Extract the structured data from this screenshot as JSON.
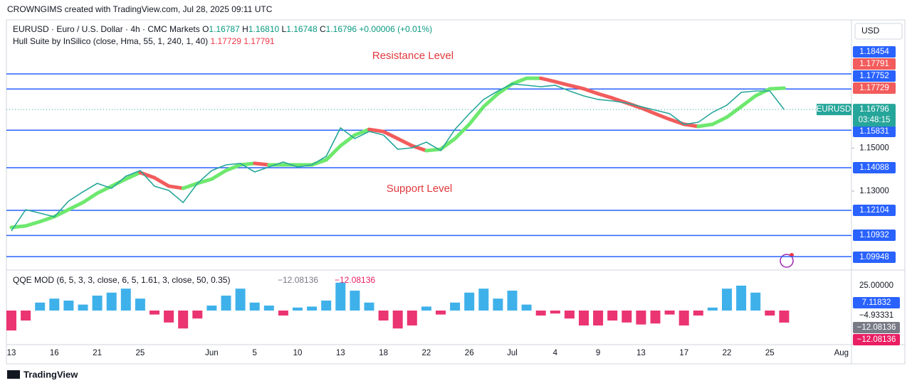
{
  "header": "CROWNGIMS created with TradingView.com, Jul 28, 2025 09:11 UTC",
  "footer": "TradingView",
  "chart_data": {
    "type": "line",
    "symbol_legend": "EURUSD · Euro / U.S. Dollar · 4h · CMC Markets",
    "ohlc": {
      "o_label": "O",
      "open": 1.16787,
      "h_label": "H",
      "high": 1.1681,
      "l_label": "L",
      "low": 1.16748,
      "c_label": "C",
      "close": 1.16796,
      "change": "+0.00006 (+0.01%)"
    },
    "high_label": "1.16810",
    "currency": "USD",
    "countdown": "03:48:15",
    "annotations": [
      "Resistance Level",
      "Support Level"
    ],
    "hull_legend": "Hull Suite by InSilico (close, Hma, 55, 1, 240, 1, 40)",
    "hull_values": [
      1.17729,
      1.17791
    ],
    "levels": [
      1.18454,
      1.17752,
      1.15831,
      1.14088,
      1.12104,
      1.10932,
      1.09948
    ],
    "level_color": "#2962ff",
    "ylim": [
      1.09392,
      1.209
    ],
    "yticks": [
      {
        "value": 1.15,
        "label": "1.15000"
      },
      {
        "value": 1.13,
        "label": "1.13000"
      }
    ],
    "categories": [
      "13",
      null,
      null,
      "16",
      null,
      null,
      "21",
      null,
      null,
      "25",
      null,
      null,
      null,
      null,
      "Jun",
      null,
      null,
      "5",
      null,
      null,
      "10",
      null,
      null,
      "13",
      null,
      null,
      "18",
      null,
      null,
      "22",
      null,
      null,
      "26",
      null,
      null,
      "Jul",
      null,
      null,
      "4",
      null,
      null,
      "9",
      null,
      null,
      "13",
      null,
      null,
      "17",
      null,
      null,
      "22",
      null,
      null,
      "25",
      null,
      null,
      null,
      null,
      "Aug"
    ],
    "series": [
      {
        "name": "EURUSD",
        "color": "#26a69a",
        "values": [
          1.11145,
          1.12137,
          1.11972,
          1.11806,
          1.12534,
          1.12964,
          1.1336,
          1.13129,
          1.13691,
          1.13956,
          1.13228,
          1.1303,
          1.12468,
          1.1336,
          1.13956,
          1.1422,
          1.14286,
          1.1389,
          1.14121,
          1.14353,
          1.14121,
          1.1422,
          1.14617,
          1.1594,
          1.15444,
          1.15775,
          1.15609,
          1.14948,
          1.15014,
          1.15278,
          1.14882,
          1.15874,
          1.16601,
          1.17263,
          1.17659,
          1.1799,
          1.17924,
          1.17858,
          1.17924,
          1.17659,
          1.17428,
          1.17263,
          1.17196,
          1.17097,
          1.16932,
          1.16767,
          1.16601,
          1.16105,
          1.16204,
          1.16667,
          1.16998,
          1.17593,
          1.17659,
          1.17659,
          1.16796,
          null,
          null,
          null,
          null
        ]
      },
      {
        "name": "Hull",
        "rising_color": "#6ee86e",
        "falling_color": "#f25c5c",
        "values": [
          1.1131,
          1.1138,
          1.1158,
          1.1181,
          1.1214,
          1.1247,
          1.129,
          1.1323,
          1.1356,
          1.1386,
          1.1362,
          1.1323,
          1.1313,
          1.1336,
          1.1356,
          1.1396,
          1.1422,
          1.1429,
          1.1422,
          1.1422,
          1.1422,
          1.1422,
          1.1445,
          1.1511,
          1.1561,
          1.1587,
          1.1577,
          1.1544,
          1.1511,
          1.1488,
          1.1495,
          1.1544,
          1.1611,
          1.1693,
          1.1753,
          1.1799,
          1.1825,
          1.1825,
          1.1809,
          1.1792,
          1.1776,
          1.1753,
          1.1733,
          1.171,
          1.1687,
          1.166,
          1.1634,
          1.1611,
          1.1601,
          1.1611,
          1.1644,
          1.1693,
          1.1743,
          1.1776,
          1.17791,
          null,
          null,
          null,
          null
        ]
      }
    ],
    "qqe": {
      "legend": "QQE MOD (6, 5, 3, 3, close, 6, 5, 1.61, 3, close, 50, 0.35)",
      "legend_values": [
        "−12.08136",
        "−12.08136"
      ],
      "up_color": "#2aa8e8",
      "down_color": "#e91e63",
      "ylim": [
        -27.1,
        37.1
      ],
      "axis_labels": [
        {
          "value": 25,
          "label": "25.00000"
        },
        7.11832,
        {
          "value": -4.93331,
          "label": "−4.93331"
        },
        {
          "value": -12.08136,
          "label": "−12.08136"
        },
        {
          "value": -12.08136,
          "label": "−12.08136"
        }
      ],
      "values": [
        -20,
        -10,
        8,
        12,
        10,
        6,
        15,
        18,
        22,
        12,
        -4,
        -12,
        -18,
        -8,
        5,
        15,
        22,
        8,
        5,
        -5,
        3,
        4,
        10,
        28,
        20,
        8,
        -10,
        -18,
        -15,
        4,
        -4,
        8,
        18,
        22,
        12,
        20,
        6,
        -5,
        -3,
        -8,
        -15,
        -15,
        -10,
        -12,
        -14,
        -13,
        -4,
        -15,
        -5,
        3,
        22,
        25,
        18,
        -5,
        -12.08136,
        null,
        null,
        null,
        null
      ]
    }
  }
}
